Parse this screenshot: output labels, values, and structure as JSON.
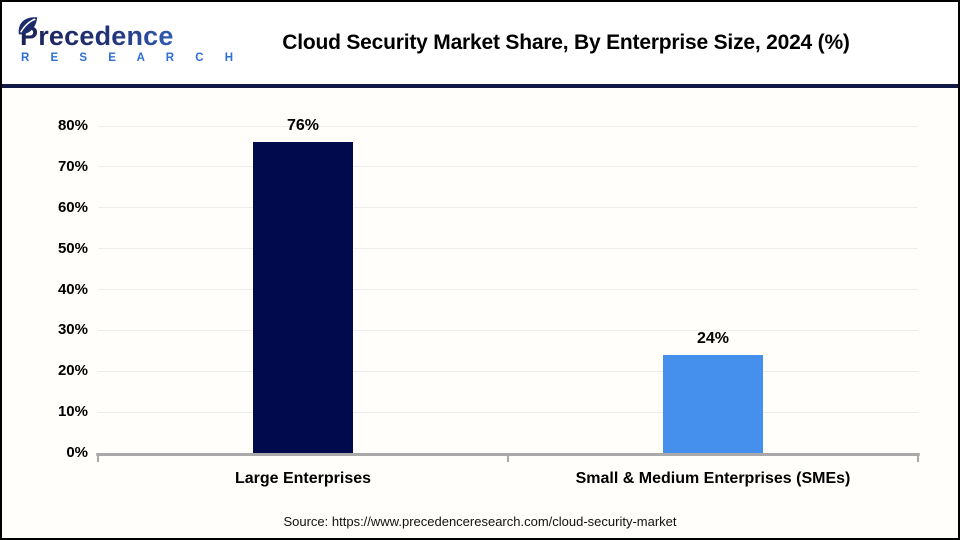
{
  "header": {
    "logo_line1": "Precedence",
    "logo_line2": "R E S E A R C H",
    "title": "Cloud Security Market Share, By Enterprise Size, 2024 (%)"
  },
  "chart_data": {
    "type": "bar",
    "title": "Cloud Security Market Share, By Enterprise Size, 2024 (%)",
    "categories": [
      "Large Enterprises",
      "Small & Medium Enterprises (SMEs)"
    ],
    "values": [
      76,
      24
    ],
    "value_labels": [
      "76%",
      "24%"
    ],
    "bar_colors": [
      "#020a4e",
      "#4590ec"
    ],
    "xlabel": "",
    "ylabel": "",
    "ylim": [
      0,
      80
    ],
    "yticks": [
      0,
      10,
      20,
      30,
      40,
      50,
      60,
      70,
      80
    ],
    "ytick_labels": [
      "0%",
      "10%",
      "20%",
      "30%",
      "40%",
      "50%",
      "60%",
      "70%",
      "80%"
    ],
    "grid": true,
    "legend": false
  },
  "footer": {
    "source": "Source: https://www.precedenceresearch.com/cloud-security-market"
  },
  "colors": {
    "bar_large": "#020a4e",
    "bar_sme": "#4590ec",
    "divider": "#101a45",
    "axis": "#a9a9a9",
    "gridline": "#ededed",
    "logo_navy": "#1b2355",
    "logo_blue": "#2e6fd6"
  }
}
